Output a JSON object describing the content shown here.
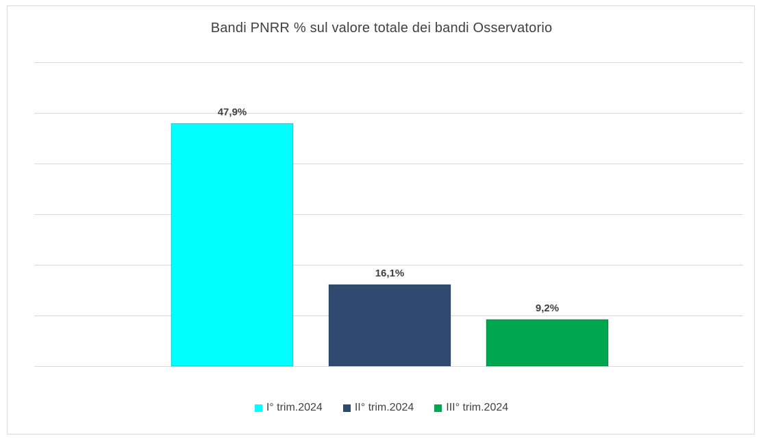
{
  "chart_data": {
    "type": "bar",
    "title": "Bandi PNRR % sul valore totale dei bandi Osservatorio",
    "categories": [
      "I° trim.2024",
      "II° trim.2024",
      "III° trim.2024"
    ],
    "values": [
      47.9,
      16.1,
      9.2
    ],
    "value_labels": [
      "47,9%",
      "16,1%",
      "9,2%"
    ],
    "colors": [
      "#00FFFF",
      "#2E4A70",
      "#00A650"
    ],
    "ylim": [
      0,
      60
    ],
    "gridlines": 6,
    "grid": true,
    "axis_tick_labels_visible": false,
    "legend_placement": "bottom",
    "series_legend": [
      {
        "name": "I° trim.2024",
        "color": "#00FFFF"
      },
      {
        "name": "II° trim.2024",
        "color": "#2E4A70"
      },
      {
        "name": "III° trim.2024",
        "color": "#00A650"
      }
    ]
  }
}
